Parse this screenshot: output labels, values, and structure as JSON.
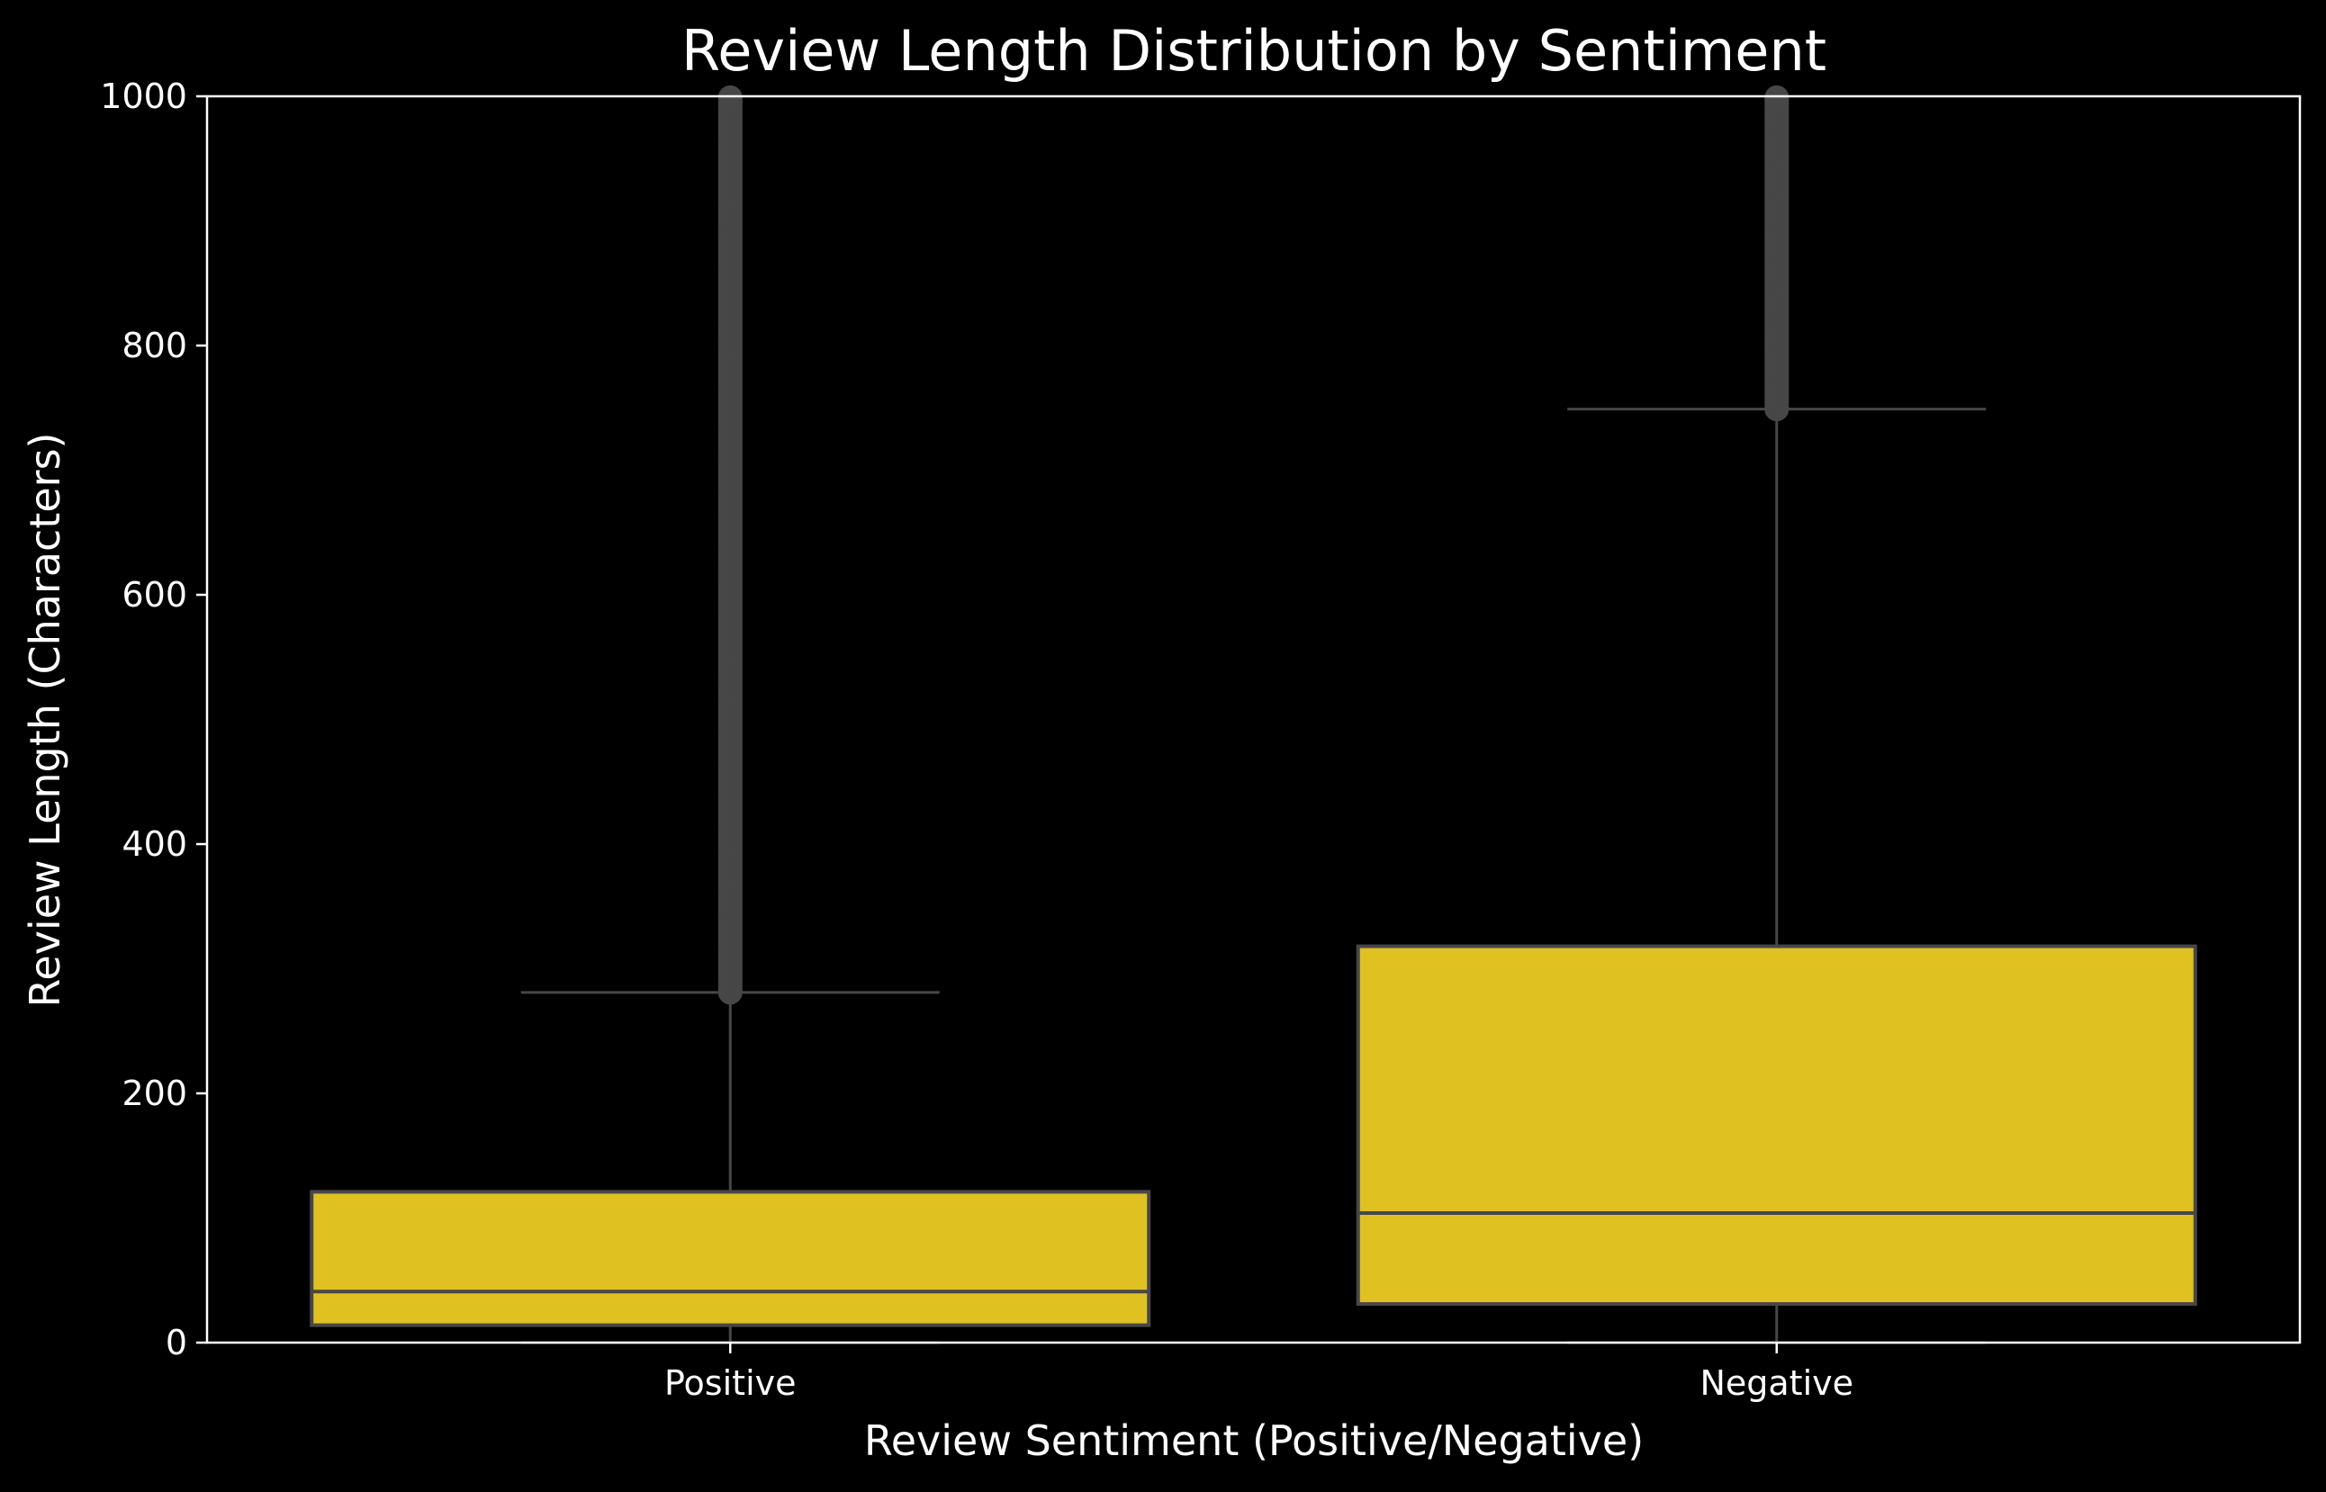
{
  "chart_data": {
    "type": "box",
    "title": "Review Length Distribution by Sentiment",
    "xlabel": "Review Sentiment (Positive/Negative)",
    "ylabel": "Review Length (Characters)",
    "ylim": [
      0,
      1000
    ],
    "yticks": [
      0,
      200,
      400,
      600,
      800,
      1000
    ],
    "categories": [
      "Positive",
      "Negative"
    ],
    "boxes": [
      {
        "category": "Positive",
        "whisker_low": 0,
        "q1": 14,
        "median": 41,
        "q3": 121,
        "whisker_high": 281,
        "outliers_from": 281,
        "outliers_to": 1000
      },
      {
        "category": "Negative",
        "whisker_low": 0,
        "q1": 31,
        "median": 104,
        "q3": 318,
        "whisker_high": 749,
        "outliers_from": 749,
        "outliers_to": 1000
      }
    ],
    "colors": {
      "background": "#000000",
      "box_fill": "#dfc122",
      "box_edge": "#474747",
      "text": "#ffffff",
      "axes": "#ffffff"
    },
    "grid": false,
    "legend": "none"
  }
}
